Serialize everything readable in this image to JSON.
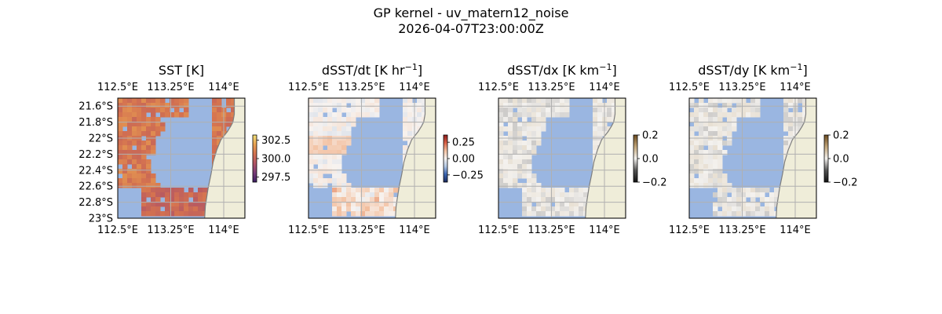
{
  "figure": {
    "title": "GP kernel - uv_matern12_noise",
    "subtitle": "2026-04-07T23:00:00Z"
  },
  "colors": {
    "ocean": "#9ab6e1",
    "land": "#efedd9",
    "coast": "#7e7e7e",
    "grid": "#b0b0b0",
    "sst_map": [
      "#3b1e63",
      "#7a3c79",
      "#b25564",
      "#d47250",
      "#e9a252",
      "#f2e27a"
    ],
    "diverging_map": [
      "#1b2a5e",
      "#3a64b0",
      "#b2c7e3",
      "#f7f3f0",
      "#f3c0a0",
      "#d96248",
      "#8c1a1a"
    ],
    "grad_map": [
      "#111111",
      "#555555",
      "#f4f2ef",
      "#c2a67a",
      "#6b4a1f"
    ]
  },
  "chart_data": [
    {
      "type": "heatmap",
      "title": "SST [K]",
      "xticks": [
        "112.5°E",
        "113.25°E",
        "114°E"
      ],
      "xtick_values": [
        112.5,
        113.25,
        114.0
      ],
      "yticks": [
        "21.6°S",
        "21.8°S",
        "22°S",
        "22.2°S",
        "22.4°S",
        "22.6°S",
        "22.8°S",
        "23°S"
      ],
      "ytick_values": [
        -21.6,
        -21.8,
        -22.0,
        -22.2,
        -22.4,
        -22.6,
        -22.8,
        -23.0
      ],
      "xlim": [
        112.5,
        114.3
      ],
      "ylim": [
        -23.0,
        -21.5
      ],
      "colorbar": {
        "ticks": [
          "302.5",
          "300.0",
          "297.5"
        ],
        "tick_values": [
          302.5,
          300.0,
          297.5
        ],
        "range": [
          296.8,
          303.2
        ],
        "cmap": "sst_map"
      },
      "show_left_labels": true,
      "typical_value": 301.0
    },
    {
      "type": "heatmap",
      "title": "dSST/dt [K hr",
      "title_sup": "−1",
      "title_end": "]",
      "xticks": [
        "112.5°E",
        "113.25°E",
        "114°E"
      ],
      "xtick_values": [
        112.5,
        113.25,
        114.0
      ],
      "xlim": [
        112.5,
        114.3
      ],
      "ylim": [
        -23.0,
        -21.5
      ],
      "colorbar": {
        "ticks": [
          "0.25",
          "0.00",
          "−0.25"
        ],
        "tick_values": [
          0.25,
          0.0,
          -0.25
        ],
        "range": [
          -0.36,
          0.36
        ],
        "cmap": "diverging_map"
      },
      "show_left_labels": false,
      "typical_value": 0.02
    },
    {
      "type": "heatmap",
      "title": "dSST/dx [K km",
      "title_sup": "−1",
      "title_end": "]",
      "xticks": [
        "112.5°E",
        "113.25°E",
        "114°E"
      ],
      "xtick_values": [
        112.5,
        113.25,
        114.0
      ],
      "xlim": [
        112.5,
        114.3
      ],
      "ylim": [
        -23.0,
        -21.5
      ],
      "colorbar": {
        "ticks": [
          "0.2",
          "0.0",
          "−0.2"
        ],
        "tick_values": [
          0.2,
          0.0,
          -0.2
        ],
        "range": [
          -0.2,
          0.2
        ],
        "cmap": "grad_map"
      },
      "show_left_labels": false,
      "typical_value": 0.0
    },
    {
      "type": "heatmap",
      "title": "dSST/dy [K km",
      "title_sup": "−1",
      "title_end": "]",
      "xticks": [
        "112.5°E",
        "113.25°E",
        "114°E"
      ],
      "xtick_values": [
        112.5,
        113.25,
        114.0
      ],
      "xlim": [
        112.5,
        114.3
      ],
      "ylim": [
        -23.0,
        -21.5
      ],
      "colorbar": {
        "ticks": [
          "0.2",
          "0.0",
          "−0.2"
        ],
        "tick_values": [
          0.2,
          0.0,
          -0.2
        ],
        "range": [
          -0.2,
          0.2
        ],
        "cmap": "grad_map"
      },
      "show_left_labels": false,
      "typical_value": 0.0
    }
  ]
}
